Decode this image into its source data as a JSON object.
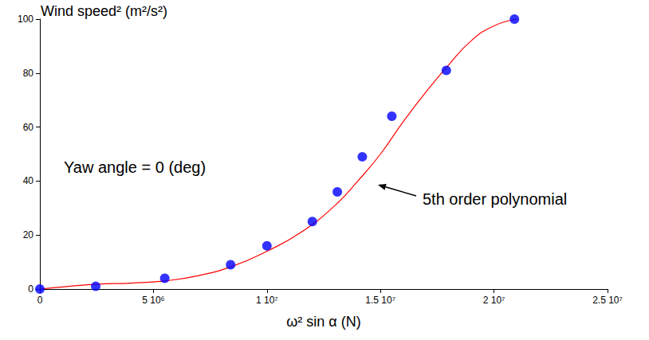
{
  "chart_data": {
    "type": "scatter",
    "ylabel": "Wind speed² (m²/s²)",
    "xlabel": "ω² sin α (N)",
    "xlim": [
      0,
      25000000
    ],
    "xticks": [
      0,
      {
        "value": 5000000,
        "label": "5 10⁶"
      },
      {
        "value": 10000000,
        "label": "1 10⁷"
      },
      {
        "value": 15000000,
        "label": "1.5 10⁷"
      },
      {
        "value": 20000000,
        "label": "2 10⁷"
      },
      {
        "value": 25000000,
        "label": "2.5 10⁷"
      }
    ],
    "ylim": [
      0,
      100
    ],
    "yticks": [
      0,
      20,
      40,
      60,
      80,
      100
    ],
    "grid": false,
    "annotations": [
      "Yaw angle = 0 (deg)",
      "5th order polynomial"
    ],
    "series": [
      {
        "type": "line",
        "color": "#ff0000",
        "line_style": "solid",
        "x": [
          0,
          1000000,
          2500000,
          4000000,
          5500000,
          7000000,
          8500000,
          10000000,
          11500000,
          13000000,
          14000000,
          15000000,
          16000000,
          17000000,
          18000000,
          19000000,
          20000000,
          21000000
        ],
        "values": [
          0,
          0.8,
          1.8,
          2.2,
          3,
          5,
          8.5,
          14,
          21,
          31,
          40,
          50,
          62,
          73,
          83,
          92,
          97.5,
          100
        ]
      },
      {
        "type": "scatter",
        "color": "#0000ff",
        "marker": "circle",
        "x": [
          0,
          2460000,
          5500000,
          8400000,
          10000000,
          12000000,
          13100000,
          14200000,
          15500000,
          17900000,
          20900000
        ],
        "values": [
          0,
          1,
          4,
          9,
          16,
          25,
          36,
          49,
          64,
          81,
          100
        ]
      }
    ]
  }
}
